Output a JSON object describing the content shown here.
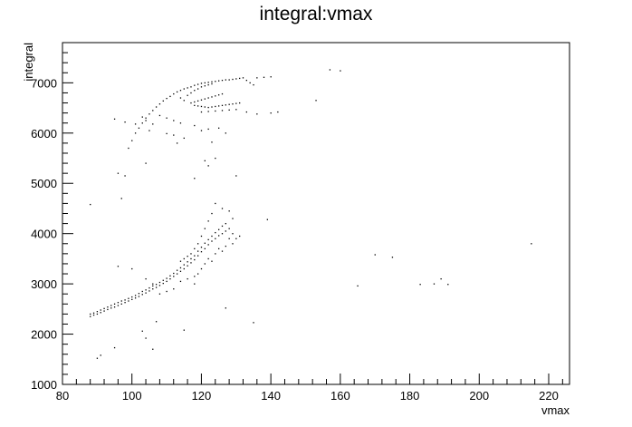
{
  "chart_data": {
    "type": "scatter",
    "title": "integral:vmax",
    "xlabel": "vmax",
    "ylabel": "integral",
    "xlim": [
      80,
      226
    ],
    "ylim": [
      1000,
      7800
    ],
    "x_ticks": [
      80,
      100,
      120,
      140,
      160,
      180,
      200,
      220
    ],
    "x_tick_labels": [
      "80",
      "100",
      "120",
      "140",
      "160",
      "180",
      "200",
      "220"
    ],
    "y_ticks": [
      1000,
      2000,
      3000,
      4000,
      5000,
      6000,
      7000
    ],
    "y_tick_labels": [
      "1000",
      "2000",
      "3000",
      "4000",
      "5000",
      "6000",
      "7000"
    ],
    "grid": false,
    "marker_color": "#000000",
    "points": [
      [
        88,
        2350
      ],
      [
        88,
        2400
      ],
      [
        89,
        2380
      ],
      [
        89,
        2420
      ],
      [
        90,
        2400
      ],
      [
        90,
        2450
      ],
      [
        91,
        2430
      ],
      [
        91,
        2480
      ],
      [
        92,
        2460
      ],
      [
        92,
        2510
      ],
      [
        93,
        2490
      ],
      [
        93,
        2540
      ],
      [
        94,
        2520
      ],
      [
        94,
        2570
      ],
      [
        95,
        2540
      ],
      [
        95,
        2600
      ],
      [
        96,
        2570
      ],
      [
        96,
        2630
      ],
      [
        97,
        2600
      ],
      [
        97,
        2660
      ],
      [
        98,
        2630
      ],
      [
        98,
        2680
      ],
      [
        99,
        2660
      ],
      [
        99,
        2710
      ],
      [
        100,
        2690
      ],
      [
        100,
        2740
      ],
      [
        101,
        2720
      ],
      [
        101,
        2770
      ],
      [
        102,
        2750
      ],
      [
        102,
        2810
      ],
      [
        103,
        2790
      ],
      [
        103,
        2850
      ],
      [
        104,
        2820
      ],
      [
        104,
        2880
      ],
      [
        105,
        2860
      ],
      [
        105,
        2920
      ],
      [
        106,
        2900
      ],
      [
        106,
        2960
      ],
      [
        107,
        2930
      ],
      [
        107,
        2990
      ],
      [
        108,
        2970
      ],
      [
        108,
        3030
      ],
      [
        109,
        3010
      ],
      [
        109,
        3070
      ],
      [
        110,
        3050
      ],
      [
        110,
        3110
      ],
      [
        111,
        3100
      ],
      [
        111,
        3160
      ],
      [
        112,
        3150
      ],
      [
        112,
        3210
      ],
      [
        113,
        3200
      ],
      [
        113,
        3270
      ],
      [
        114,
        3250
      ],
      [
        114,
        3320
      ],
      [
        115,
        3300
      ],
      [
        115,
        3380
      ],
      [
        116,
        3360
      ],
      [
        116,
        3440
      ],
      [
        117,
        3420
      ],
      [
        117,
        3500
      ],
      [
        118,
        3480
      ],
      [
        118,
        3560
      ],
      [
        119,
        3560
      ],
      [
        119,
        3650
      ],
      [
        120,
        3640
      ],
      [
        120,
        3730
      ],
      [
        121,
        3700
      ],
      [
        121,
        3810
      ],
      [
        122,
        3780
      ],
      [
        122,
        3880
      ],
      [
        123,
        3850
      ],
      [
        123,
        3950
      ],
      [
        124,
        3900
      ],
      [
        124,
        4020
      ],
      [
        125,
        3960
      ],
      [
        125,
        4080
      ],
      [
        126,
        4000
      ],
      [
        126,
        4150
      ],
      [
        127,
        4050
      ],
      [
        127,
        4200
      ],
      [
        128,
        4100
      ],
      [
        128,
        3900
      ],
      [
        129,
        4000
      ],
      [
        129,
        3800
      ],
      [
        130,
        3900
      ],
      [
        131,
        3950
      ],
      [
        121,
        3400
      ],
      [
        122,
        3500
      ],
      [
        123,
        3450
      ],
      [
        120,
        3300
      ],
      [
        119,
        3200
      ],
      [
        118,
        3150
      ],
      [
        124,
        3600
      ],
      [
        125,
        3700
      ],
      [
        126,
        3650
      ],
      [
        127,
        3750
      ],
      [
        122,
        4250
      ],
      [
        123,
        4400
      ],
      [
        124,
        4600
      ],
      [
        126,
        4500
      ],
      [
        128,
        4450
      ],
      [
        129,
        4300
      ],
      [
        121,
        4100
      ],
      [
        120,
        3950
      ],
      [
        119,
        3800
      ],
      [
        118,
        3700
      ],
      [
        117,
        3600
      ],
      [
        116,
        3550
      ],
      [
        115,
        3500
      ],
      [
        114,
        3450
      ],
      [
        96,
        3350
      ],
      [
        100,
        3300
      ],
      [
        104,
        3100
      ],
      [
        106,
        3000
      ],
      [
        108,
        2800
      ],
      [
        110,
        2850
      ],
      [
        112,
        2900
      ],
      [
        114,
        3050
      ],
      [
        116,
        3100
      ],
      [
        118,
        3000
      ],
      [
        90,
        1520
      ],
      [
        91,
        1580
      ],
      [
        95,
        1730
      ],
      [
        103,
        2060
      ],
      [
        104,
        1920
      ],
      [
        106,
        1700
      ],
      [
        107,
        2250
      ],
      [
        115,
        2080
      ],
      [
        127,
        2520
      ],
      [
        135,
        2230
      ],
      [
        165,
        2960
      ],
      [
        170,
        3580
      ],
      [
        175,
        3530
      ],
      [
        183,
        2990
      ],
      [
        187,
        3000
      ],
      [
        189,
        3100
      ],
      [
        191,
        2990
      ],
      [
        215,
        3800
      ],
      [
        139,
        4280
      ],
      [
        88,
        4580
      ],
      [
        97,
        4700
      ],
      [
        96,
        5200
      ],
      [
        98,
        5150
      ],
      [
        104,
        5400
      ],
      [
        118,
        5100
      ],
      [
        121,
        5450
      ],
      [
        122,
        5350
      ],
      [
        124,
        5500
      ],
      [
        130,
        5150
      ],
      [
        123,
        5820
      ],
      [
        99,
        5700
      ],
      [
        100,
        5850
      ],
      [
        101,
        6000
      ],
      [
        102,
        6100
      ],
      [
        103,
        6200
      ],
      [
        104,
        6300
      ],
      [
        105,
        6380
      ],
      [
        106,
        6450
      ],
      [
        107,
        6520
      ],
      [
        108,
        6580
      ],
      [
        109,
        6640
      ],
      [
        110,
        6690
      ],
      [
        111,
        6730
      ],
      [
        112,
        6780
      ],
      [
        113,
        6820
      ],
      [
        114,
        6850
      ],
      [
        115,
        6880
      ],
      [
        116,
        6900
      ],
      [
        117,
        6920
      ],
      [
        118,
        6950
      ],
      [
        119,
        6970
      ],
      [
        120,
        6990
      ],
      [
        121,
        7000
      ],
      [
        122,
        7010
      ],
      [
        123,
        7020
      ],
      [
        124,
        7030
      ],
      [
        125,
        7040
      ],
      [
        126,
        7050
      ],
      [
        127,
        7060
      ],
      [
        128,
        7060
      ],
      [
        129,
        7070
      ],
      [
        130,
        7080
      ],
      [
        131,
        7090
      ],
      [
        132,
        7100
      ],
      [
        133,
        7050
      ],
      [
        134,
        7000
      ],
      [
        135,
        6960
      ],
      [
        136,
        7100
      ],
      [
        138,
        7110
      ],
      [
        140,
        7120
      ],
      [
        114,
        6700
      ],
      [
        115,
        6650
      ],
      [
        116,
        6750
      ],
      [
        117,
        6800
      ],
      [
        118,
        6850
      ],
      [
        119,
        6880
      ],
      [
        120,
        6920
      ],
      [
        121,
        6940
      ],
      [
        122,
        6960
      ],
      [
        123,
        6980
      ],
      [
        117,
        6600
      ],
      [
        118,
        6620
      ],
      [
        119,
        6640
      ],
      [
        120,
        6660
      ],
      [
        121,
        6680
      ],
      [
        122,
        6700
      ],
      [
        123,
        6720
      ],
      [
        124,
        6740
      ],
      [
        125,
        6760
      ],
      [
        126,
        6780
      ],
      [
        118,
        6550
      ],
      [
        119,
        6540
      ],
      [
        120,
        6530
      ],
      [
        121,
        6520
      ],
      [
        122,
        6510
      ],
      [
        123,
        6520
      ],
      [
        124,
        6530
      ],
      [
        125,
        6540
      ],
      [
        126,
        6550
      ],
      [
        127,
        6560
      ],
      [
        128,
        6570
      ],
      [
        129,
        6580
      ],
      [
        130,
        6590
      ],
      [
        131,
        6600
      ],
      [
        120,
        6420
      ],
      [
        122,
        6430
      ],
      [
        124,
        6440
      ],
      [
        126,
        6450
      ],
      [
        128,
        6460
      ],
      [
        130,
        6470
      ],
      [
        108,
        6350
      ],
      [
        110,
        6300
      ],
      [
        112,
        6250
      ],
      [
        114,
        6200
      ],
      [
        106,
        6180
      ],
      [
        104,
        6250
      ],
      [
        103,
        6320
      ],
      [
        95,
        6280
      ],
      [
        98,
        6220
      ],
      [
        101,
        6180
      ],
      [
        105,
        6050
      ],
      [
        110,
        5990
      ],
      [
        112,
        5960
      ],
      [
        113,
        5800
      ],
      [
        115,
        5900
      ],
      [
        120,
        6050
      ],
      [
        122,
        6080
      ],
      [
        125,
        6100
      ],
      [
        127,
        6000
      ],
      [
        118,
        6150
      ],
      [
        133,
        6420
      ],
      [
        136,
        6380
      ],
      [
        140,
        6400
      ],
      [
        142,
        6420
      ],
      [
        153,
        6650
      ],
      [
        157,
        7260
      ],
      [
        160,
        7240
      ]
    ]
  }
}
